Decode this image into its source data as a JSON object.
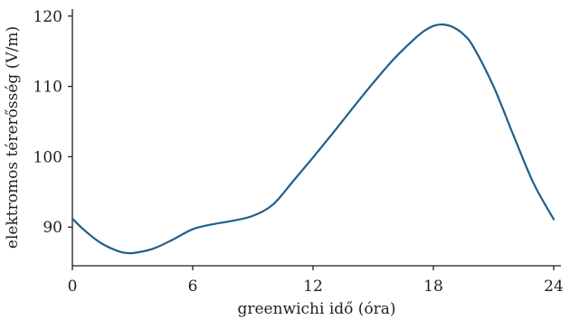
{
  "chart_data": {
    "type": "line",
    "xlabel": "greenwichi idő (óra)",
    "ylabel": "elektromos térerősség (V/m)",
    "xlim": [
      0,
      24
    ],
    "ylim": [
      84.5,
      121
    ],
    "xticks": [
      0,
      6,
      12,
      18,
      24
    ],
    "yticks": [
      90,
      100,
      110,
      120
    ],
    "grid": false,
    "series": [
      {
        "color": "#1f5f8b",
        "x": [
          0,
          0.5,
          1,
          1.5,
          2,
          2.5,
          3,
          4,
          5,
          6,
          7,
          8,
          9,
          10,
          11,
          12,
          13,
          14,
          15,
          16,
          17,
          17.5,
          18,
          18.5,
          19,
          19.5,
          20,
          21,
          22,
          23,
          24
        ],
        "y": [
          91.2,
          89.8,
          88.6,
          87.6,
          86.9,
          86.4,
          86.3,
          86.9,
          88.2,
          89.7,
          90.4,
          90.9,
          91.6,
          93.2,
          96.5,
          99.9,
          103.4,
          107.0,
          110.5,
          113.8,
          116.6,
          117.8,
          118.6,
          118.8,
          118.4,
          117.4,
          115.6,
          110.0,
          103.0,
          96.2,
          91.1
        ]
      }
    ]
  }
}
